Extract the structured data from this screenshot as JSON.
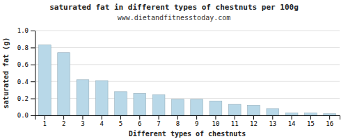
{
  "chart_data": {
    "type": "bar",
    "title": "saturated fat in different types of chestnuts per 100g",
    "subtitle": "www.dietandfitnesstoday.com",
    "xlabel": "Different types of chestnuts",
    "ylabel": "saturated fat (g)",
    "categories": [
      1,
      2,
      3,
      4,
      5,
      6,
      7,
      8,
      9,
      10,
      11,
      12,
      13,
      14,
      15,
      16
    ],
    "values": [
      0.83,
      0.74,
      0.42,
      0.41,
      0.28,
      0.26,
      0.245,
      0.19,
      0.19,
      0.17,
      0.13,
      0.12,
      0.08,
      0.03,
      0.03,
      0.02
    ],
    "color": "#b8d8e8",
    "ylim": [
      0,
      1.0
    ],
    "yticks": [
      {
        "value": 0,
        "label": "0.0"
      },
      0.2,
      0.4,
      0.6,
      0.8,
      {
        "value": 1,
        "label": "1.0"
      }
    ],
    "grid": true
  }
}
